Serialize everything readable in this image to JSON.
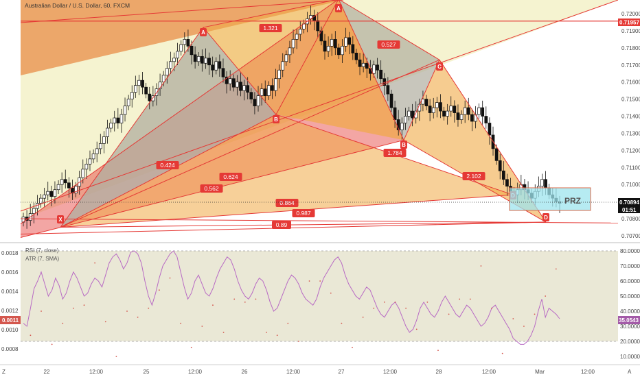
{
  "title": "Australian Dollar / U.S. Dollar, 60, FXCM",
  "chart_data": [
    {
      "type": "candlestick",
      "title": "Australian Dollar / U.S. Dollar, 60, FXCM",
      "ylim": [
        0.7065,
        0.7211
      ],
      "price_ticks": [
        "0.72000",
        "0.71900",
        "0.71800",
        "0.71700",
        "0.71600",
        "0.71500",
        "0.71400",
        "0.71300",
        "0.71200",
        "0.71100",
        "0.71000",
        "0.70900",
        "0.70800",
        "0.70700"
      ],
      "price_tags": {
        "high_line": "0.71957",
        "last": "0.70894",
        "countdown": "01:51"
      },
      "x_labels": [
        "22",
        "12:00",
        "25",
        "12:00",
        "26",
        "12:00",
        "27",
        "12:00",
        "28",
        "12:00",
        "Mar",
        "12:00"
      ],
      "close_path": [
        0.7081,
        0.7079,
        0.7083,
        0.7086,
        0.7089,
        0.7092,
        0.7094,
        0.7096,
        0.7093,
        0.7097,
        0.71,
        0.7103,
        0.7101,
        0.7098,
        0.7095,
        0.7099,
        0.7104,
        0.7109,
        0.7112,
        0.7115,
        0.7118,
        0.7121,
        0.7124,
        0.7128,
        0.7133,
        0.7136,
        0.7139,
        0.7136,
        0.7141,
        0.7146,
        0.715,
        0.7154,
        0.7158,
        0.7161,
        0.7157,
        0.7153,
        0.7149,
        0.7152,
        0.7156,
        0.716,
        0.7164,
        0.7168,
        0.7172,
        0.7174,
        0.7178,
        0.7182,
        0.7185,
        0.7181,
        0.7176,
        0.7172,
        0.7175,
        0.7171,
        0.7174,
        0.717,
        0.7167,
        0.7172,
        0.7168,
        0.7163,
        0.7159,
        0.7162,
        0.7157,
        0.716,
        0.7155,
        0.7158,
        0.7154,
        0.715,
        0.7146,
        0.7152,
        0.7156,
        0.7152,
        0.7158,
        0.7155,
        0.7162,
        0.7167,
        0.7172,
        0.7176,
        0.718,
        0.7185,
        0.7188,
        0.7191,
        0.7194,
        0.7197,
        0.7199,
        0.7196,
        0.719,
        0.7184,
        0.7178,
        0.7181,
        0.7185,
        0.718,
        0.7176,
        0.7181,
        0.7186,
        0.7182,
        0.7177,
        0.7173,
        0.7169,
        0.7171,
        0.7168,
        0.7165,
        0.717,
        0.7167,
        0.7162,
        0.7158,
        0.7153,
        0.7145,
        0.7138,
        0.7132,
        0.7136,
        0.714,
        0.7143,
        0.7139,
        0.7143,
        0.7147,
        0.715,
        0.7146,
        0.7142,
        0.7145,
        0.7148,
        0.7143,
        0.714,
        0.7143,
        0.7146,
        0.7142,
        0.7138,
        0.7141,
        0.7145,
        0.7141,
        0.7137,
        0.7141,
        0.7145,
        0.714,
        0.7136,
        0.7129,
        0.7121,
        0.7114,
        0.7108,
        0.7103,
        0.7099,
        0.7096,
        0.7094,
        0.7097,
        0.71,
        0.7097,
        0.7095,
        0.7092,
        0.7096,
        0.7099,
        0.7103,
        0.7098,
        0.7094,
        0.7092,
        0.709,
        0.7089
      ],
      "harmonic_points": [
        {
          "label": "X",
          "price": 0.7075
        },
        {
          "label": "A",
          "price": 0.7192
        },
        {
          "label": "B",
          "price": 0.7141
        },
        {
          "label": "A",
          "price": 0.72085
        },
        {
          "label": "B",
          "price": 0.7126
        },
        {
          "label": "C",
          "price": 0.7173
        },
        {
          "label": "D",
          "price": 0.7094
        },
        {
          "label": "D",
          "price": 0.7078
        }
      ],
      "ratios": [
        "1.321",
        "0.527",
        "0.424",
        "0.624",
        "0.562",
        "1.784",
        "2.102",
        "0.864",
        "0.987",
        "0.89"
      ],
      "prz_label": "PRZ"
    },
    {
      "type": "line",
      "title": "RSI (7, close)",
      "subtitle": "ATR (7, SMA)",
      "left_ticks": [
        "0.0018",
        "0.0016",
        "0.0014",
        "0.0012",
        "0.0010",
        "0.0008"
      ],
      "right_ticks": [
        "80.0000",
        "70.0000",
        "60.0000",
        "50.0000",
        "40.0000",
        "30.0000",
        "20.0000",
        "10.0000"
      ],
      "ylim": [
        5,
        85
      ],
      "band": [
        20,
        80
      ],
      "last_rsi": "35.0543",
      "last_atr": "0.0011",
      "rsi_values": [
        32,
        30,
        42,
        55,
        60,
        66,
        58,
        50,
        54,
        62,
        57,
        48,
        52,
        60,
        66,
        62,
        56,
        50,
        52,
        58,
        62,
        60,
        56,
        64,
        72,
        76,
        78,
        74,
        68,
        72,
        79,
        80,
        78,
        72,
        60,
        50,
        44,
        52,
        62,
        70,
        74,
        78,
        80,
        76,
        66,
        56,
        48,
        52,
        60,
        64,
        58,
        52,
        50,
        55,
        62,
        68,
        72,
        76,
        74,
        68,
        60,
        54,
        50,
        48,
        52,
        58,
        62,
        60,
        54,
        46,
        40,
        42,
        48,
        54,
        60,
        64,
        62,
        58,
        52,
        48,
        46,
        44,
        48,
        56,
        62,
        66,
        70,
        74,
        76,
        72,
        64,
        58,
        54,
        50,
        48,
        52,
        56,
        54,
        48,
        42,
        38,
        36,
        40,
        44,
        46,
        42,
        36,
        30,
        26,
        28,
        34,
        42,
        46,
        42,
        38,
        36,
        40,
        46,
        50,
        46,
        42,
        38,
        36,
        40,
        44,
        42,
        38,
        34,
        30,
        32,
        36,
        42,
        44,
        40,
        36,
        32,
        28,
        22,
        20,
        18,
        18,
        20,
        24,
        30,
        40,
        48,
        36,
        42,
        40,
        38,
        35
      ]
    }
  ],
  "axis_labels": {
    "bottom_left_corner": "Z",
    "bottom_right_corner": "A"
  },
  "colors": {
    "bg_top": "#f5f3d0",
    "orange": "#f0aa46",
    "orange_dark": "#e8863e",
    "red": "#e53935",
    "grey": "#b0ae9f",
    "pink": "#f08a8a",
    "prz": "#9ee4ee",
    "rsi": "#b86ac4",
    "atr": "#d4574e",
    "panel_bg": "#eae8d6",
    "price_tag_red": "#e53935"
  }
}
